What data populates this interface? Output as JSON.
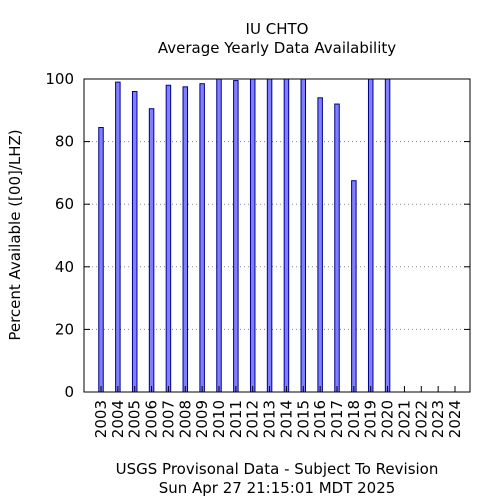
{
  "chart_data": {
    "type": "bar",
    "title": "IU CHTO",
    "subtitle": "Average Yearly Data Availability",
    "xlabel": "",
    "ylabel": "Percent Available ([00]/LHZ)",
    "ylim": [
      0,
      100
    ],
    "yticks": [
      0,
      20,
      40,
      60,
      80,
      100
    ],
    "grid": "horizontal dotted",
    "categories": [
      "2003",
      "2004",
      "2005",
      "2006",
      "2007",
      "2008",
      "2009",
      "2010",
      "2011",
      "2012",
      "2013",
      "2014",
      "2015",
      "2016",
      "2017",
      "2018",
      "2019",
      "2020",
      "2021",
      "2022",
      "2023",
      "2024"
    ],
    "values": [
      84.5,
      99,
      96,
      90.5,
      98,
      97.5,
      98.5,
      100,
      99.5,
      100,
      100,
      100,
      100,
      94,
      92,
      67.5,
      100,
      100,
      null,
      null,
      null,
      null
    ],
    "bar_color": "#7f7fff",
    "bar_edge_color": "#00008b",
    "footer_line1": "USGS Provisonal Data - Subject To Revision",
    "footer_line2": "Sun Apr 27 21:15:01 MDT 2025"
  }
}
